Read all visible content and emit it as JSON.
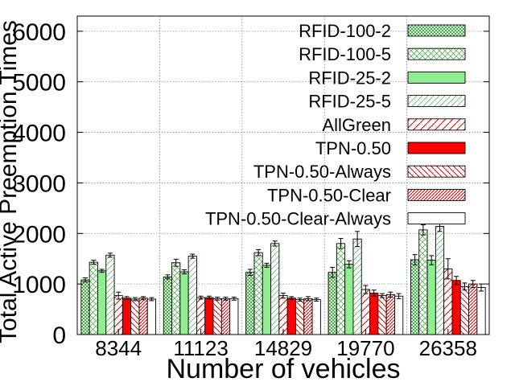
{
  "chart_data": {
    "type": "bar",
    "title": "",
    "xlabel": "Number of vehicles",
    "ylabel": "Total Active Preemption Times",
    "categories": [
      "8344",
      "11123",
      "14829",
      "19770",
      "26358"
    ],
    "ylim": [
      0,
      6300
    ],
    "yticks": [
      0,
      1000,
      2000,
      3000,
      4000,
      5000,
      6000
    ],
    "grid": true,
    "legend_position": "top-right",
    "series": [
      {
        "name": "RFID-100-2",
        "values": [
          1080,
          1140,
          1230,
          1230,
          1480
        ],
        "errors": [
          40,
          40,
          60,
          100,
          100
        ]
      },
      {
        "name": "RFID-100-5",
        "values": [
          1430,
          1420,
          1620,
          1800,
          2070
        ],
        "errors": [
          40,
          70,
          60,
          100,
          100
        ]
      },
      {
        "name": "RFID-25-2",
        "values": [
          1260,
          1240,
          1370,
          1390,
          1470
        ],
        "errors": [
          30,
          40,
          40,
          70,
          90
        ]
      },
      {
        "name": "RFID-25-5",
        "values": [
          1570,
          1550,
          1800,
          1890,
          2140
        ],
        "errors": [
          40,
          40,
          50,
          150,
          100
        ]
      },
      {
        "name": "AllGreen",
        "values": [
          770,
          730,
          770,
          890,
          1300
        ],
        "errors": [
          70,
          30,
          50,
          80,
          200
        ]
      },
      {
        "name": "TPN-0.50",
        "values": [
          720,
          730,
          720,
          820,
          1070
        ],
        "errors": [
          30,
          30,
          30,
          60,
          80
        ]
      },
      {
        "name": "TPN-0.50-Always",
        "values": [
          700,
          710,
          690,
          770,
          950
        ],
        "errors": [
          30,
          30,
          30,
          40,
          70
        ]
      },
      {
        "name": "TPN-0.50-Clear",
        "values": [
          720,
          710,
          710,
          790,
          1000
        ],
        "errors": [
          30,
          30,
          40,
          50,
          70
        ]
      },
      {
        "name": "TPN-0.50-Clear-Always",
        "values": [
          700,
          710,
          690,
          760,
          930
        ],
        "errors": [
          30,
          30,
          30,
          50,
          70
        ]
      }
    ]
  }
}
